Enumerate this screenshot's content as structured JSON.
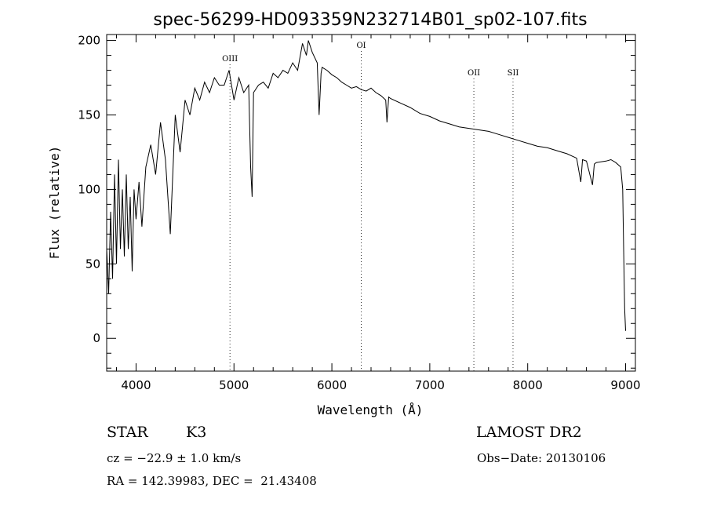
{
  "chart_data": {
    "type": "line",
    "title": "spec-56299-HD093359N232714B01_sp02-107.fits",
    "xlabel": "Wavelength (Å)",
    "ylabel": "Flux (relative)",
    "xlim": [
      3700,
      9100
    ],
    "ylim": [
      -22,
      204
    ],
    "x_ticks": [
      4000,
      5000,
      6000,
      7000,
      8000,
      9000
    ],
    "x_tick_labels": [
      "4000",
      "5000",
      "6000",
      "7000",
      "8000",
      "9000"
    ],
    "y_ticks": [
      0,
      50,
      100,
      150,
      200
    ],
    "y_tick_labels": [
      "0",
      "50",
      "100",
      "150",
      "200"
    ],
    "grid": false,
    "line_markers": [
      {
        "label": "OIII",
        "x": 4959
      },
      {
        "label": "OI",
        "x": 6300
      },
      {
        "label": "OII",
        "x": 7450
      },
      {
        "label": "SII",
        "x": 7850
      }
    ],
    "series": [
      {
        "x": [
          3700,
          3720,
          3740,
          3760,
          3780,
          3800,
          3820,
          3840,
          3860,
          3880,
          3900,
          3920,
          3940,
          3960,
          3980,
          4000,
          4030,
          4060,
          4100,
          4150,
          4200,
          4250,
          4300,
          4350,
          4400,
          4450,
          4500,
          4550,
          4600,
          4650,
          4700,
          4750,
          4800,
          4850,
          4900,
          4950,
          5000,
          5050,
          5100,
          5150,
          5170,
          5185,
          5200,
          5250,
          5300,
          5350,
          5400,
          5450,
          5500,
          5550,
          5600,
          5650,
          5700,
          5740,
          5760,
          5780,
          5800,
          5850,
          5870,
          5890,
          5900,
          5950,
          6000,
          6050,
          6100,
          6150,
          6200,
          6250,
          6300,
          6350,
          6400,
          6450,
          6500,
          6550,
          6563,
          6580,
          6600,
          6700,
          6800,
          6900,
          7000,
          7100,
          7200,
          7300,
          7400,
          7500,
          7600,
          7700,
          7800,
          7900,
          8000,
          8100,
          8200,
          8300,
          8400,
          8500,
          8542,
          8560,
          8600,
          8662,
          8680,
          8700,
          8800,
          8850,
          8900,
          8950,
          8970,
          8980,
          8990,
          9000
        ],
        "y": [
          60,
          30,
          85,
          40,
          110,
          50,
          120,
          60,
          100,
          55,
          110,
          60,
          95,
          45,
          100,
          80,
          105,
          75,
          115,
          130,
          110,
          145,
          120,
          70,
          150,
          125,
          160,
          150,
          168,
          160,
          172,
          165,
          175,
          170,
          170,
          180,
          160,
          175,
          165,
          170,
          115,
          95,
          165,
          170,
          172,
          168,
          178,
          175,
          180,
          178,
          185,
          180,
          198,
          190,
          200,
          196,
          192,
          185,
          150,
          178,
          182,
          180,
          177,
          175,
          172,
          170,
          168,
          169,
          167,
          166,
          168,
          165,
          163,
          160,
          145,
          162,
          161,
          158,
          155,
          151,
          149,
          146,
          144,
          142,
          141,
          140,
          139,
          137,
          135,
          133,
          131,
          129,
          128,
          126,
          124,
          121,
          105,
          120,
          119,
          103,
          117,
          118,
          119,
          120,
          118,
          115,
          100,
          60,
          20,
          5
        ]
      }
    ]
  },
  "info": {
    "obj_class": "STAR",
    "subclass": "K3",
    "survey": "LAMOST DR2",
    "cz": "cz = −22.9 ± 1.0 km/s",
    "obs_date": "Obs−Date: 20130106",
    "coords": "RA = 142.39983, DEC =  21.43408"
  }
}
